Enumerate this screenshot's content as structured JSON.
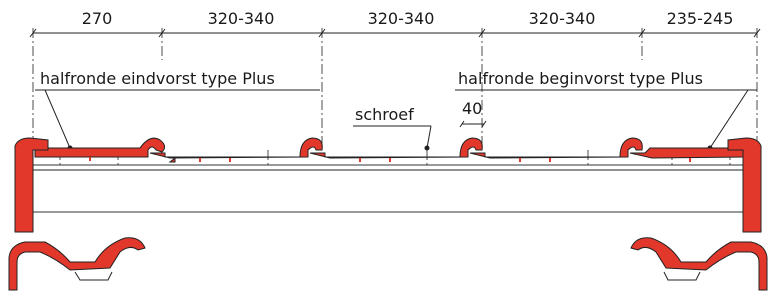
{
  "dimensions": [
    "270",
    "320-340",
    "320-340",
    "320-340",
    "235-245"
  ],
  "labels": {
    "left_ridge": "halfronde eindvorst type Plus",
    "right_ridge": "halfronde beginvorst type Plus",
    "screw": "schroef",
    "spacing": "40"
  }
}
